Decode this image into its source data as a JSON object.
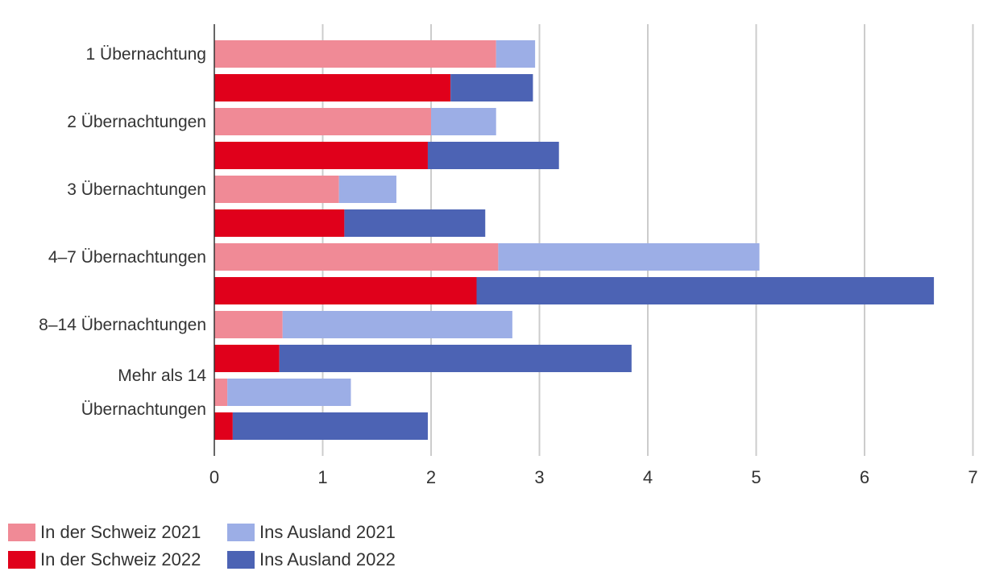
{
  "chart_data": {
    "type": "bar",
    "orientation": "horizontal",
    "stacked": true,
    "title": "",
    "xlabel": "",
    "ylabel": "",
    "xlim": [
      0,
      7
    ],
    "xticks": [
      "0",
      "1",
      "2",
      "3",
      "4",
      "5",
      "6",
      "7"
    ],
    "grid": true,
    "legend_position": "bottom-left",
    "categories": [
      [
        "1 Übernachtung"
      ],
      [
        "2 Übernachtungen"
      ],
      [
        "3 Übernachtungen"
      ],
      [
        "4–7 Übernachtungen"
      ],
      [
        "8–14 Übernachtungen"
      ],
      [
        "Mehr als 14",
        "Übernachtungen"
      ]
    ],
    "groups": [
      {
        "year": "2021",
        "series": [
          {
            "name": "In der Schweiz 2021",
            "color": "#f08a96",
            "values": [
              2.6,
              2.0,
              1.15,
              2.62,
              0.63,
              0.12
            ]
          },
          {
            "name": "Ins Ausland 2021",
            "color": "#9caee6",
            "values": [
              0.36,
              0.6,
              0.53,
              2.41,
              2.12,
              1.14
            ]
          }
        ]
      },
      {
        "year": "2022",
        "series": [
          {
            "name": "In der Schweiz 2022",
            "color": "#e0001b",
            "values": [
              2.18,
              1.97,
              1.2,
              2.42,
              0.6,
              0.17
            ]
          },
          {
            "name": "Ins Ausland 2022",
            "color": "#4c63b4",
            "values": [
              0.76,
              1.21,
              1.3,
              4.22,
              3.25,
              1.8
            ]
          }
        ]
      }
    ]
  },
  "legend": [
    {
      "label": "In der Schweiz 2021",
      "color": "#f08a96"
    },
    {
      "label": "Ins Ausland 2021",
      "color": "#9caee6"
    },
    {
      "label": "In der Schweiz 2022",
      "color": "#e0001b"
    },
    {
      "label": "Ins Ausland 2022",
      "color": "#4c63b4"
    }
  ]
}
